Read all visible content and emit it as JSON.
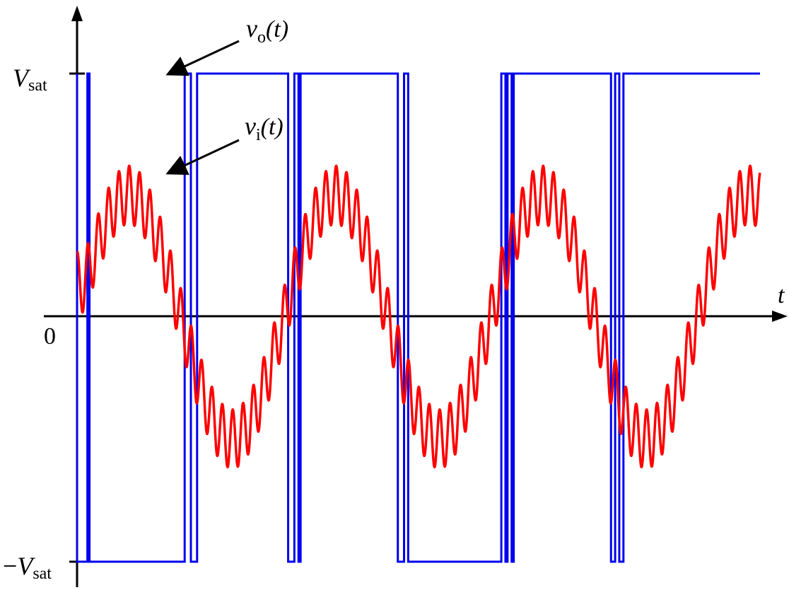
{
  "chart_data": {
    "type": "line",
    "title": "",
    "xlabel": "t",
    "ylabel": "",
    "origin_label": "0",
    "y_ticks": [
      {
        "value": 1,
        "label": "V",
        "sub": "sat",
        "prefix": ""
      },
      {
        "value": -1,
        "label": "V",
        "sub": "sat",
        "prefix": "−"
      }
    ],
    "xlim": [
      0,
      3.3
    ],
    "ylim": [
      -1.0,
      1.0
    ],
    "grid": false,
    "legend": "none",
    "annotations": [
      {
        "series": "vo",
        "text_main": "v",
        "text_sub": "o",
        "text_arg": "(t)"
      },
      {
        "series": "vi",
        "text_main": "v",
        "text_sub": "i",
        "text_arg": "(t)"
      }
    ],
    "series": [
      {
        "id": "vi",
        "color": "#ff0000",
        "kind": "sine_plus_noise",
        "baseline_peak": 0.5,
        "ripple_amplitude": 0.12,
        "ripple_cycles_per_period": 20,
        "period": 1.0,
        "start_value": 0.15
      },
      {
        "id": "vo",
        "color": "#0000ee",
        "kind": "comparator_output",
        "high": 1,
        "low": -1,
        "transitions": [
          0.0,
          0.05,
          0.06,
          0.52,
          0.55,
          0.58,
          1.02,
          1.05,
          1.07,
          1.08,
          1.55,
          1.58,
          1.6,
          2.05,
          2.07,
          2.08,
          2.1,
          2.11,
          2.58,
          2.6,
          2.62,
          2.64
        ],
        "initial_state": "high"
      }
    ]
  }
}
